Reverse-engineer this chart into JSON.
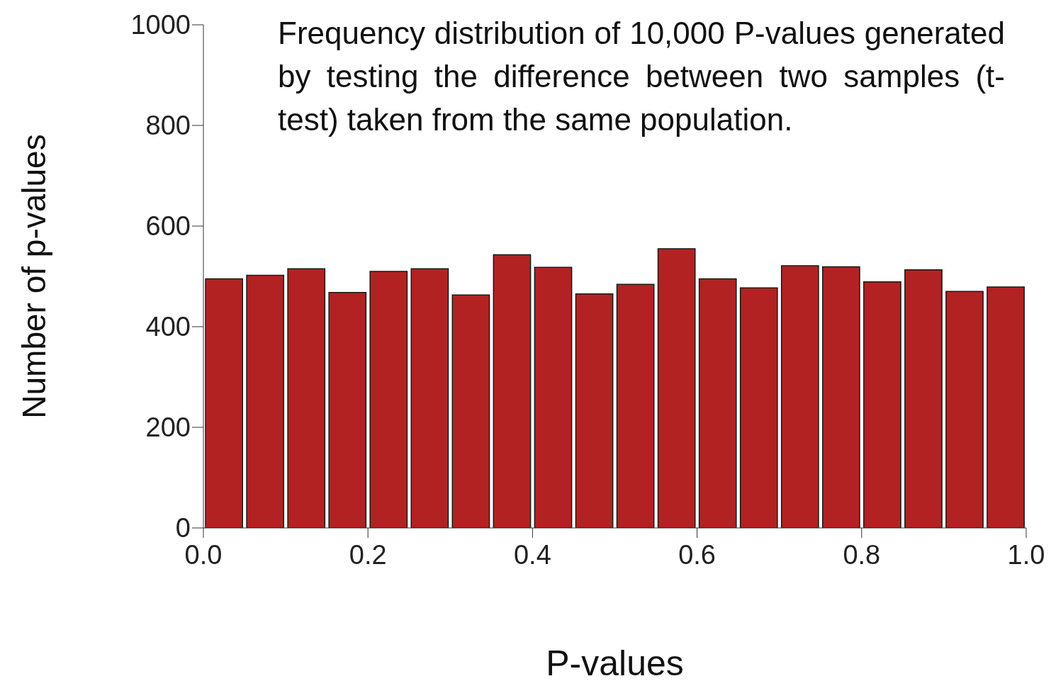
{
  "chart_data": {
    "type": "histogram",
    "title": "Frequency distribution of 10,000 P-values generated by testing the difference between two samples (t-test) taken from the same population.",
    "xlabel": "P-values",
    "ylabel": "Number of p-values",
    "bins": [
      0,
      0.05,
      0.1,
      0.15,
      0.2,
      0.25,
      0.3,
      0.35,
      0.4,
      0.45,
      0.5,
      0.55,
      0.6,
      0.65,
      0.7,
      0.75,
      0.8,
      0.85,
      0.9,
      0.95,
      1.0
    ],
    "values": [
      495,
      502,
      515,
      468,
      510,
      515,
      463,
      543,
      518,
      465,
      484,
      555,
      495,
      477,
      521,
      519,
      489,
      513,
      470,
      479
    ],
    "color": "#b22222",
    "xlim": [
      0,
      1
    ],
    "xticks": [
      {
        "value": 0,
        "label": "0.0"
      },
      0.2,
      0.4,
      0.6,
      0.8,
      {
        "value": 1,
        "label": "1.0"
      }
    ],
    "ylim": [
      0,
      1000
    ],
    "yticks": [
      0,
      200,
      400,
      600,
      800,
      1000
    ]
  }
}
